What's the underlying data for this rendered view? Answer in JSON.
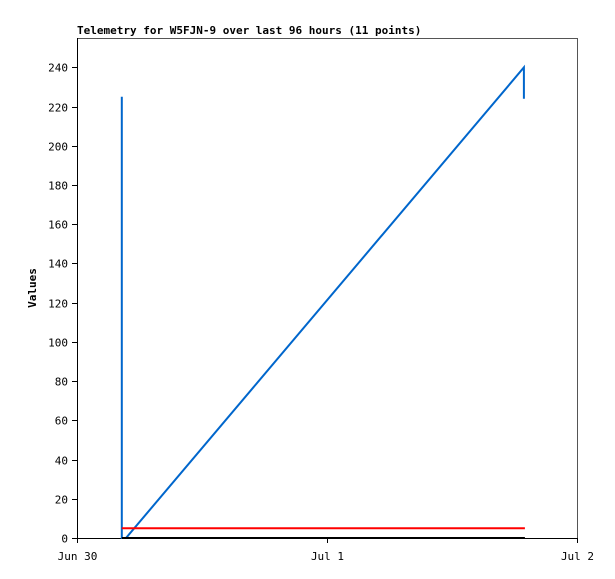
{
  "chart_data": {
    "type": "line",
    "title": "Telemetry for W5FJN-9 over last 96 hours (11 points)",
    "xlabel": "",
    "ylabel": "Values",
    "ylim": [
      0,
      255
    ],
    "xlim_hours": [
      0,
      48
    ],
    "x_ticks": [
      {
        "label": "Jun 30",
        "hour": 0
      },
      {
        "label": "Jul 1",
        "hour": 24
      },
      {
        "label": "Jul 2",
        "hour": 48
      }
    ],
    "y_ticks": [
      0,
      20,
      40,
      60,
      80,
      100,
      120,
      140,
      160,
      180,
      200,
      220,
      240
    ],
    "grid": false,
    "series": [
      {
        "color": "#0066cc",
        "points": [
          [
            4.3,
            225
          ],
          [
            4.3,
            0
          ],
          [
            4.7,
            0
          ],
          [
            42.9,
            240
          ],
          [
            42.9,
            224
          ]
        ]
      },
      {
        "color": "#ff0000",
        "points": [
          [
            4.3,
            5
          ],
          [
            43.0,
            5
          ]
        ]
      },
      {
        "color": "#000000",
        "points": [
          [
            4.3,
            0
          ],
          [
            43.0,
            0
          ]
        ]
      }
    ]
  }
}
